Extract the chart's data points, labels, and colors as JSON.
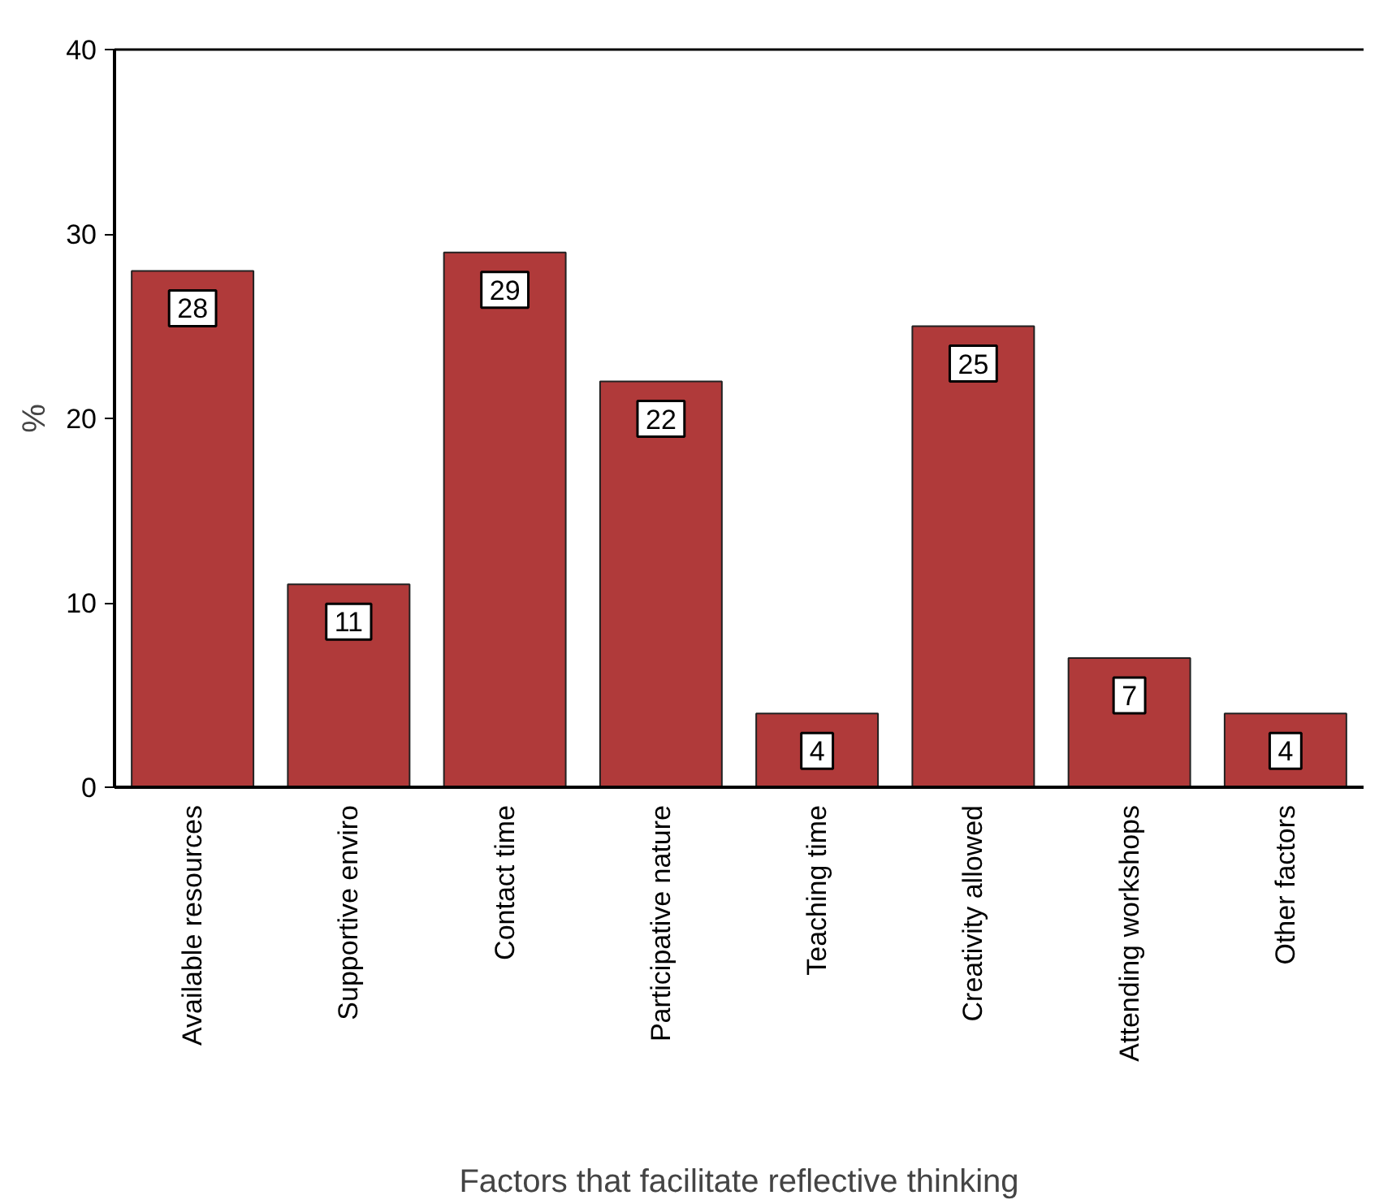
{
  "chart_data": {
    "type": "bar",
    "xlabel": "Factors that facilitate reflective thinking",
    "ylabel": "%",
    "categories": [
      "Available resources",
      "Supportive enviro",
      "Contact time",
      "Participative nature",
      "Teaching time",
      "Creativity allowed",
      "Attending workshops",
      "Other factors"
    ],
    "values": [
      28,
      11,
      29,
      22,
      4,
      25,
      7,
      4
    ],
    "color": "#b03a3a",
    "ylim": [
      0,
      40
    ],
    "yticks": [
      0,
      10,
      20,
      30,
      40
    ],
    "grid": false,
    "data_labels": true
  }
}
